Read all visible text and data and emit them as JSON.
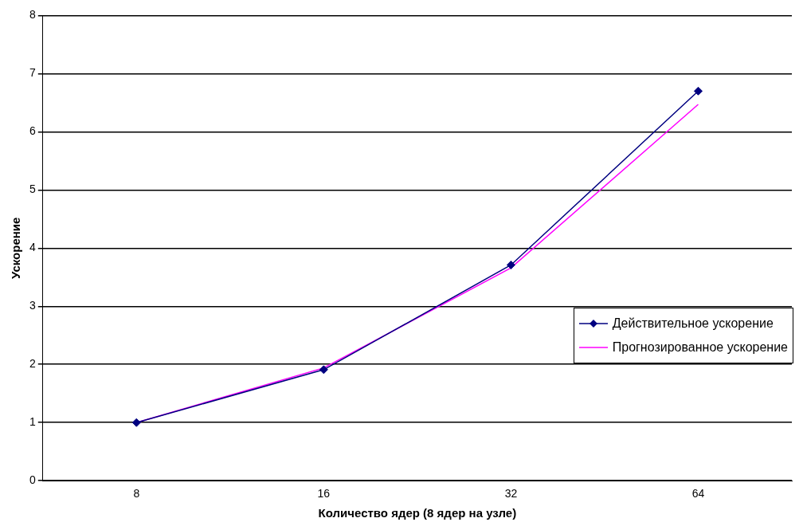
{
  "chart_data": {
    "type": "line",
    "xlabel": "Количество ядер (8 ядер на узле)",
    "ylabel": "Ускорение",
    "categories": [
      "8",
      "16",
      "32",
      "64"
    ],
    "series": [
      {
        "name": "Действительное ускорение",
        "color": "#000080",
        "marker": "diamond",
        "values": [
          1,
          1.91,
          3.71,
          6.7
        ]
      },
      {
        "name": "Прогнозированное ускорение",
        "color": "#ff00ff",
        "marker": "none",
        "values": [
          1,
          1.94,
          3.66,
          6.47
        ]
      }
    ],
    "ylim": [
      0,
      8
    ],
    "yticks": [
      0,
      1,
      2,
      3,
      4,
      5,
      6,
      7,
      8
    ],
    "grid": "y",
    "legend": "right"
  }
}
